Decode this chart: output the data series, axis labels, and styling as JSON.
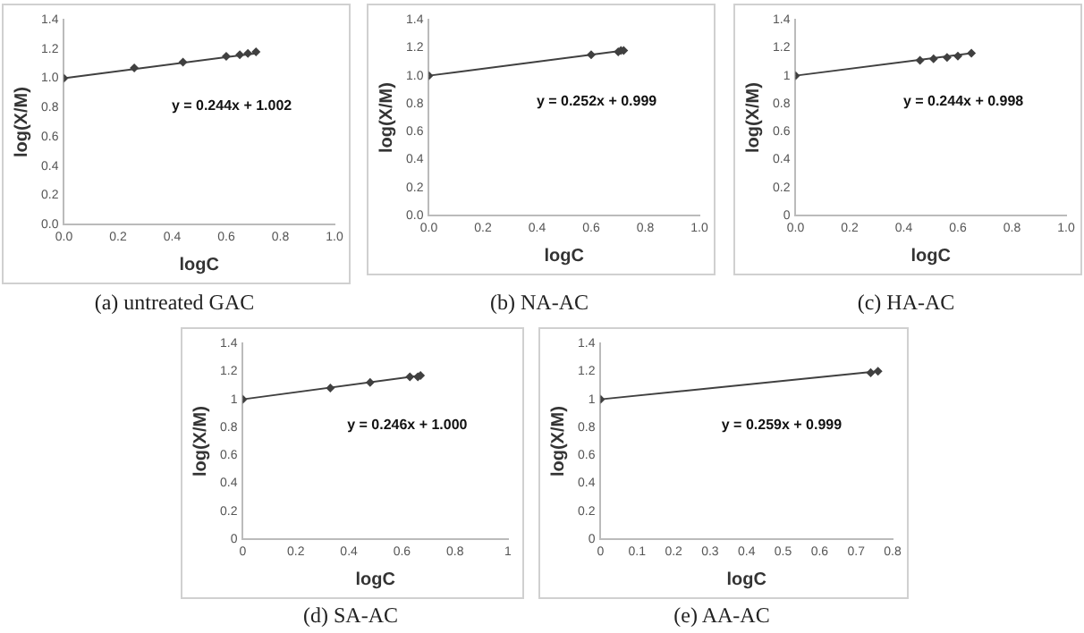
{
  "chart_data": [
    {
      "type": "scatter",
      "title": "(a) untreated GAC",
      "xlabel": "logC",
      "ylabel": "log(X/M)",
      "marker": "diamond",
      "legend": false,
      "grid": false,
      "x": [
        0,
        0.26,
        0.44,
        0.6,
        0.65,
        0.68,
        0.71
      ],
      "series": [
        {
          "color": "#404040",
          "values": [
            1.0,
            1.07,
            1.11,
            1.15,
            1.16,
            1.17,
            1.18
          ]
        },
        {
          "type": "line",
          "color": "#404040",
          "marker": "none",
          "x": [
            0,
            0.71
          ],
          "values": [
            1.0,
            1.17
          ]
        }
      ],
      "xlim": [
        0,
        1
      ],
      "xticks": [
        {
          "value": 0,
          "label": "0.0"
        },
        {
          "value": 0.2,
          "label": "0.2"
        },
        {
          "value": 0.4,
          "label": "0.4"
        },
        {
          "value": 0.6,
          "label": "0.6"
        },
        {
          "value": 0.8,
          "label": "0.8"
        },
        {
          "value": 1,
          "label": "1.0"
        }
      ],
      "ylim": [
        0,
        1.4
      ],
      "yticks": [
        {
          "value": 0,
          "label": "0.0"
        },
        {
          "value": 0.2,
          "label": "0.2"
        },
        {
          "value": 0.4,
          "label": "0.4"
        },
        {
          "value": 0.6,
          "label": "0.6"
        },
        {
          "value": 0.8,
          "label": "0.8"
        },
        {
          "value": 1,
          "label": "1.0"
        },
        {
          "value": 1.2,
          "label": "1.2"
        },
        {
          "value": 1.4,
          "label": "1.4"
        }
      ],
      "annotations": [
        "y = 0.244x + 1.002"
      ]
    },
    {
      "type": "scatter",
      "title": "(b) NA-AC",
      "xlabel": "logC",
      "ylabel": "log(X/M)",
      "marker": "diamond",
      "legend": false,
      "grid": false,
      "x": [
        0,
        0.6,
        0.7,
        0.71,
        0.72
      ],
      "series": [
        {
          "color": "#404040",
          "values": [
            1.0,
            1.15,
            1.17,
            1.18,
            1.18
          ]
        },
        {
          "type": "line",
          "color": "#404040",
          "marker": "none",
          "x": [
            0,
            0.72
          ],
          "values": [
            1.0,
            1.18
          ]
        }
      ],
      "xlim": [
        0,
        1
      ],
      "xticks": [
        {
          "value": 0,
          "label": "0.0"
        },
        {
          "value": 0.2,
          "label": "0.2"
        },
        {
          "value": 0.4,
          "label": "0.4"
        },
        {
          "value": 0.6,
          "label": "0.6"
        },
        {
          "value": 0.8,
          "label": "0.8"
        },
        {
          "value": 1,
          "label": "1.0"
        }
      ],
      "ylim": [
        0,
        1.4
      ],
      "yticks": [
        {
          "value": 0,
          "label": "0.0"
        },
        {
          "value": 0.2,
          "label": "0.2"
        },
        {
          "value": 0.4,
          "label": "0.4"
        },
        {
          "value": 0.6,
          "label": "0.6"
        },
        {
          "value": 0.8,
          "label": "0.8"
        },
        {
          "value": 1,
          "label": "1.0"
        },
        {
          "value": 1.2,
          "label": "1.2"
        },
        {
          "value": 1.4,
          "label": "1.4"
        }
      ],
      "annotations": [
        "y = 0.252x + 0.999"
      ]
    },
    {
      "type": "scatter",
      "title": "(c) HA-AC",
      "xlabel": "logC",
      "ylabel": "log(X/M)",
      "marker": "diamond",
      "legend": false,
      "grid": false,
      "x": [
        0,
        0.46,
        0.51,
        0.56,
        0.6,
        0.65
      ],
      "series": [
        {
          "color": "#404040",
          "values": [
            1.0,
            1.11,
            1.12,
            1.13,
            1.14,
            1.16
          ]
        },
        {
          "type": "line",
          "color": "#404040",
          "marker": "none",
          "x": [
            0,
            0.65
          ],
          "values": [
            1.0,
            1.16
          ]
        }
      ],
      "xlim": [
        0,
        1
      ],
      "xticks": [
        {
          "value": 0,
          "label": "0.0"
        },
        {
          "value": 0.2,
          "label": "0.2"
        },
        {
          "value": 0.4,
          "label": "0.4"
        },
        {
          "value": 0.6,
          "label": "0.6"
        },
        {
          "value": 0.8,
          "label": "0.8"
        },
        {
          "value": 1,
          "label": "1.0"
        }
      ],
      "ylim": [
        0,
        1.4
      ],
      "yticks": [
        0,
        0.2,
        0.4,
        0.6,
        0.8,
        1,
        1.2,
        1.4
      ],
      "annotations": [
        "y = 0.244x + 0.998"
      ]
    },
    {
      "type": "scatter",
      "title": "(d) SA-AC",
      "xlabel": "logC",
      "ylabel": "log(X/M)",
      "marker": "diamond",
      "legend": false,
      "grid": false,
      "x": [
        0,
        0.33,
        0.48,
        0.63,
        0.66,
        0.67
      ],
      "series": [
        {
          "color": "#404040",
          "values": [
            1.0,
            1.08,
            1.12,
            1.16,
            1.16,
            1.17
          ]
        },
        {
          "type": "line",
          "color": "#404040",
          "marker": "none",
          "x": [
            0,
            0.67
          ],
          "values": [
            1.0,
            1.17
          ]
        }
      ],
      "xlim": [
        0,
        1
      ],
      "xticks": [
        0,
        0.2,
        0.4,
        0.6,
        0.8,
        1
      ],
      "ylim": [
        0,
        1.4
      ],
      "yticks": [
        0,
        0.2,
        0.4,
        0.6,
        0.8,
        1,
        1.2,
        1.4
      ],
      "annotations": [
        "y = 0.246x + 1.000"
      ]
    },
    {
      "type": "scatter",
      "title": "(e) AA-AC",
      "xlabel": "logC",
      "ylabel": "log(X/M)",
      "marker": "diamond",
      "legend": false,
      "grid": false,
      "x": [
        0,
        0.74,
        0.76
      ],
      "series": [
        {
          "color": "#404040",
          "values": [
            1.0,
            1.19,
            1.2
          ]
        },
        {
          "type": "line",
          "color": "#404040",
          "marker": "none",
          "x": [
            0,
            0.76
          ],
          "values": [
            1.0,
            1.2
          ]
        }
      ],
      "xlim": [
        0,
        0.8
      ],
      "xticks": [
        0,
        0.1,
        0.2,
        0.3,
        0.4,
        0.5,
        0.6,
        0.7,
        0.8
      ],
      "ylim": [
        0,
        1.4
      ],
      "yticks": [
        0,
        0.2,
        0.4,
        0.6,
        0.8,
        1,
        1.2,
        1.4
      ],
      "annotations": [
        "y = 0.259x + 0.999"
      ]
    }
  ]
}
